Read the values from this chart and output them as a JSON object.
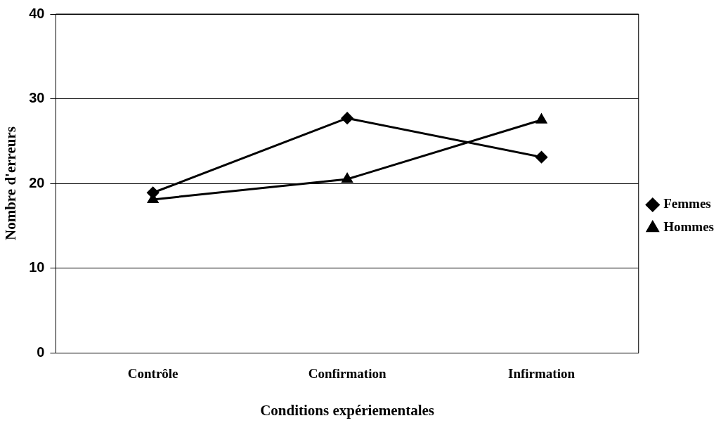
{
  "chart_data": {
    "type": "line",
    "xlabel": "Conditions expériementales",
    "ylabel": "Nombre d'erreurs",
    "categories": [
      "Contrôle",
      "Confirmation",
      "Infirmation"
    ],
    "series": [
      {
        "name": "Femmes",
        "color": "#000000",
        "marker": "diamond",
        "values": [
          18.9,
          27.7,
          23.1
        ]
      },
      {
        "name": "Hommes",
        "color": "#000000",
        "marker": "triangle",
        "values": [
          18.1,
          20.5,
          27.5
        ]
      }
    ],
    "ylim": [
      0,
      40
    ],
    "yticks": [
      0,
      10,
      20,
      30,
      40
    ],
    "grid": "y",
    "legend": "right",
    "line_style": "solid"
  }
}
